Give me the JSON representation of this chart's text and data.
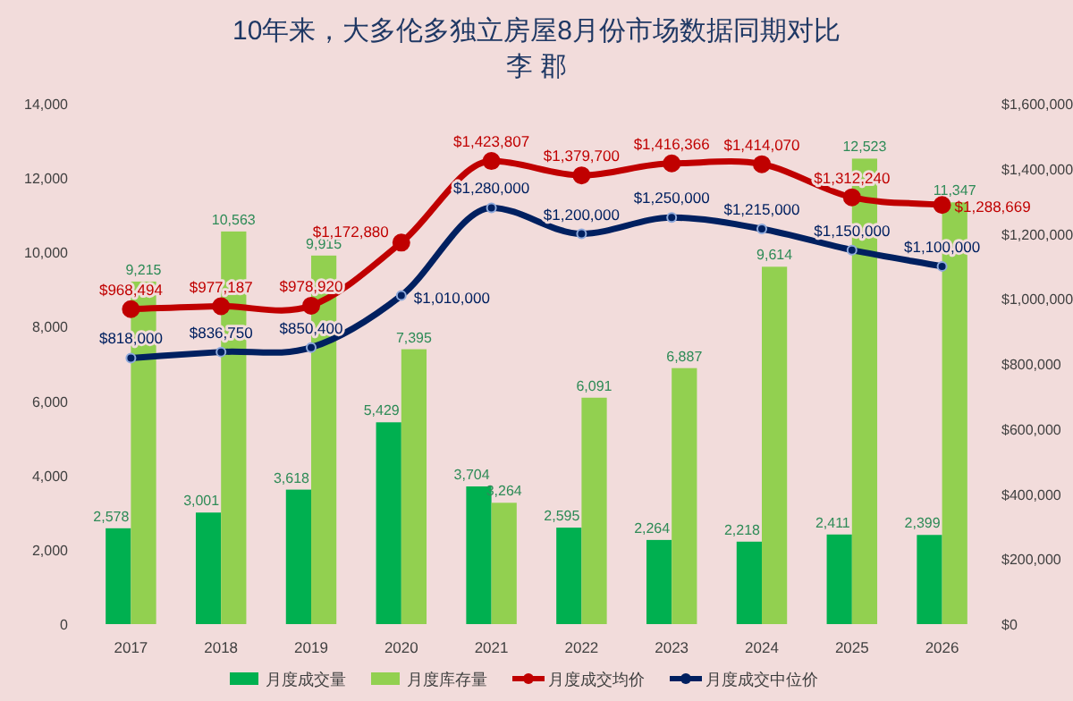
{
  "chart_data": {
    "type": "bar",
    "title": "10年来，大多伦多独立房屋8月份市场数据同期对比",
    "subtitle": "李 郡",
    "categories": [
      "2017",
      "2018",
      "2019",
      "2020",
      "2021",
      "2022",
      "2023",
      "2024",
      "2025",
      "2026"
    ],
    "series": [
      {
        "name": "月度成交量",
        "color": "#00b050",
        "values": [
          2578,
          3001,
          3618,
          5429,
          3704,
          2595,
          2264,
          2218,
          2411,
          2399
        ],
        "value_labels": [
          "2,578",
          "3,001",
          "3,618",
          "5,429",
          "3,704",
          "2,595",
          "2,264",
          "2,218",
          "2,411",
          "2,399"
        ]
      },
      {
        "name": "月度库存量",
        "color": "#92d050",
        "values": [
          9215,
          10563,
          9915,
          7395,
          3264,
          6091,
          6887,
          9614,
          12523,
          11347
        ],
        "value_labels": [
          "9,215",
          "10,563",
          "9,915",
          "7,395",
          "3,264",
          "6,091",
          "6,887",
          "9,614",
          "12,523",
          "11,347"
        ]
      },
      {
        "name": "月度成交均价",
        "type": "line",
        "axis": "y2",
        "color": "#c00000",
        "marker": "circle",
        "values": [
          968494,
          977187,
          978920,
          1172880,
          1423807,
          1379700,
          1416366,
          1414070,
          1312240,
          1288669
        ],
        "value_labels": [
          "$968,494",
          "$977,187",
          "$978,920",
          "$1,172,880",
          "$1,423,807",
          "$1,379,700",
          "$1,416,366",
          "$1,414,070",
          "$1,312,240",
          "$1,288,669"
        ]
      },
      {
        "name": "月度成交中位价",
        "type": "line",
        "axis": "y2",
        "color": "#002060",
        "marker": "circle",
        "values": [
          818000,
          836750,
          850400,
          1010000,
          1280000,
          1200000,
          1250000,
          1215000,
          1150000,
          1100000
        ],
        "value_labels": [
          "$818,000",
          "$836,750",
          "$850,400",
          "$1,010,000",
          "$1,280,000",
          "$1,200,000",
          "$1,250,000",
          "$1,215,000",
          "$1,150,000",
          "$1,100,000"
        ]
      }
    ],
    "ylim": [
      0,
      14000
    ],
    "yticks": [
      0,
      {
        "value": 2000,
        "label": "2,000"
      },
      {
        "value": 4000,
        "label": "4,000"
      },
      {
        "value": 6000,
        "label": "6,000"
      },
      {
        "value": 8000,
        "label": "8,000"
      },
      {
        "value": 10000,
        "label": "10,000"
      },
      {
        "value": 12000,
        "label": "12,000"
      },
      {
        "value": 14000,
        "label": "14,000"
      }
    ],
    "y2lim": [
      0,
      1600000
    ],
    "y2ticks": [
      {
        "value": 0,
        "label": "$0"
      },
      {
        "value": 200000,
        "label": "$200,000"
      },
      {
        "value": 400000,
        "label": "$400,000"
      },
      {
        "value": 600000,
        "label": "$600,000"
      },
      {
        "value": 800000,
        "label": "$800,000"
      },
      {
        "value": 1000000,
        "label": "$1,000,000"
      },
      {
        "value": 1200000,
        "label": "$1,200,000"
      },
      {
        "value": 1400000,
        "label": "$1,400,000"
      },
      {
        "value": 1600000,
        "label": "$1,600,000"
      }
    ],
    "legend": "bottom"
  }
}
